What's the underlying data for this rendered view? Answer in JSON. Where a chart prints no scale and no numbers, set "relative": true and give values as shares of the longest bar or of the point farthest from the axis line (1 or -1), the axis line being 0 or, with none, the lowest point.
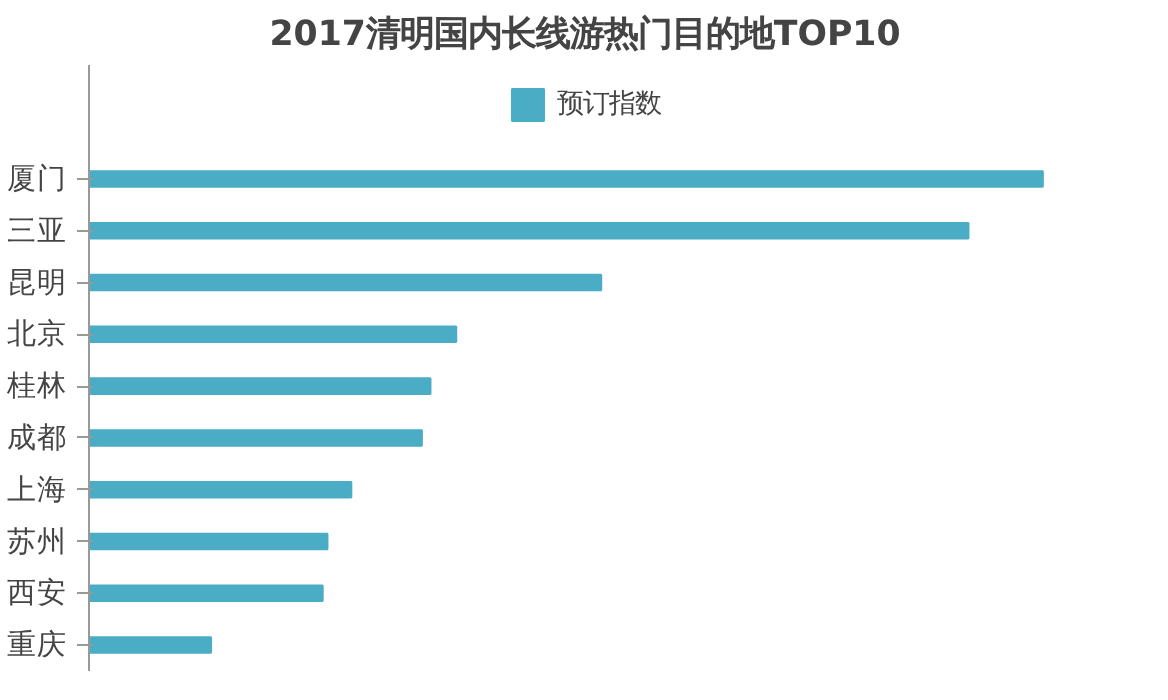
{
  "chart_data": {
    "type": "bar",
    "title": "2017清明国内长线游热门目的地TOP10",
    "orientation": "horizontal",
    "relative": true,
    "legend": "top",
    "categories": [
      "厦门",
      "三亚",
      "昆明",
      "北京",
      "桂林",
      "成都",
      "上海",
      "苏州",
      "西安",
      "重庆"
    ],
    "series": [
      {
        "name": "预订指数",
        "color": "#4bacc6",
        "values": [
          1,
          0.922,
          0.537,
          0.385,
          0.358,
          0.349,
          0.275,
          0.25,
          0.245,
          0.128
        ]
      }
    ]
  }
}
